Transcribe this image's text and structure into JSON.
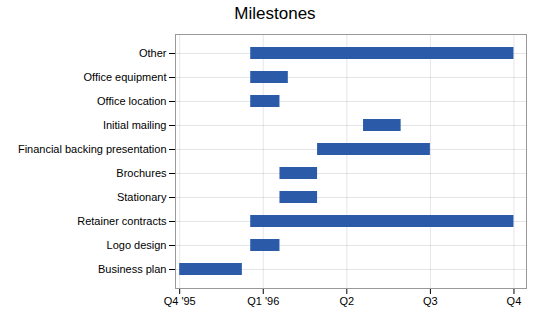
{
  "chart_data": {
    "type": "bar",
    "title": "Milestones",
    "orientation": "horizontal",
    "categories": [
      "Business plan",
      "Logo design",
      "Retainer contracts",
      "Stationary",
      "Brochures",
      "Financial backing presentation",
      "Initial mailing",
      "Office location",
      "Office equipment",
      "Other"
    ],
    "values": [
      [
        0.0,
        0.75
      ],
      [
        0.85,
        1.2
      ],
      [
        0.85,
        4.0
      ],
      [
        1.2,
        1.65
      ],
      [
        1.2,
        1.65
      ],
      [
        1.65,
        3.0
      ],
      [
        2.2,
        2.65
      ],
      [
        0.85,
        1.2
      ],
      [
        0.85,
        1.3
      ],
      [
        0.85,
        4.0
      ]
    ],
    "color": "#2B5BA8",
    "xlim": [
      -0.05,
      4.15
    ],
    "xticks": [
      {
        "value": 0,
        "label": "Q4 '95"
      },
      {
        "value": 1,
        "label": "Q1 '96"
      },
      {
        "value": 2,
        "label": "Q2"
      },
      {
        "value": 3,
        "label": "Q3"
      },
      {
        "value": 4,
        "label": "Q4"
      }
    ],
    "grid": true
  }
}
